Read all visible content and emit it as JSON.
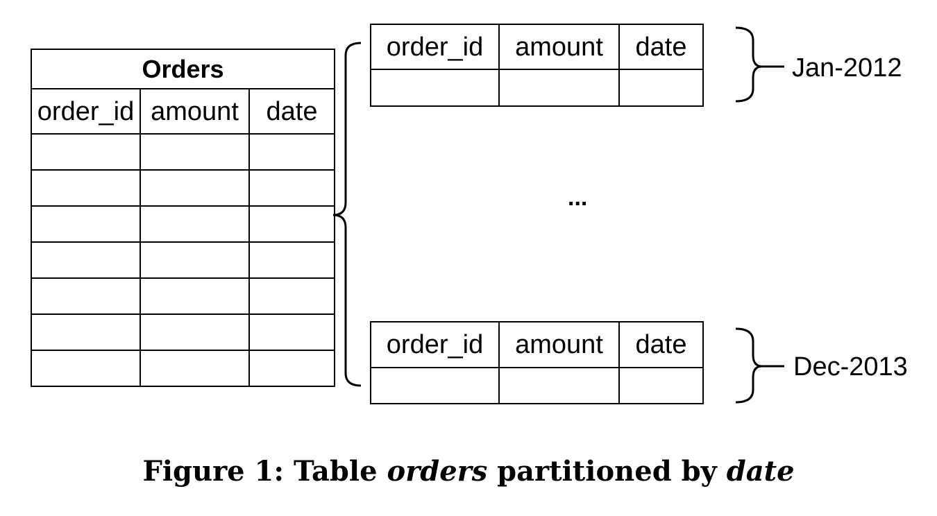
{
  "orders_table": {
    "title": "Orders",
    "columns": [
      "order_id",
      "amount",
      "date"
    ]
  },
  "partitions": [
    {
      "label": "Jan-2012",
      "columns": [
        "order_id",
        "amount",
        "date"
      ]
    },
    {
      "label": "Dec-2013",
      "columns": [
        "order_id",
        "amount",
        "date"
      ]
    }
  ],
  "ellipsis": "...",
  "caption": {
    "prefix": "Figure 1: Table",
    "term1": "orders",
    "middle": "partitioned by",
    "term2": "date"
  }
}
